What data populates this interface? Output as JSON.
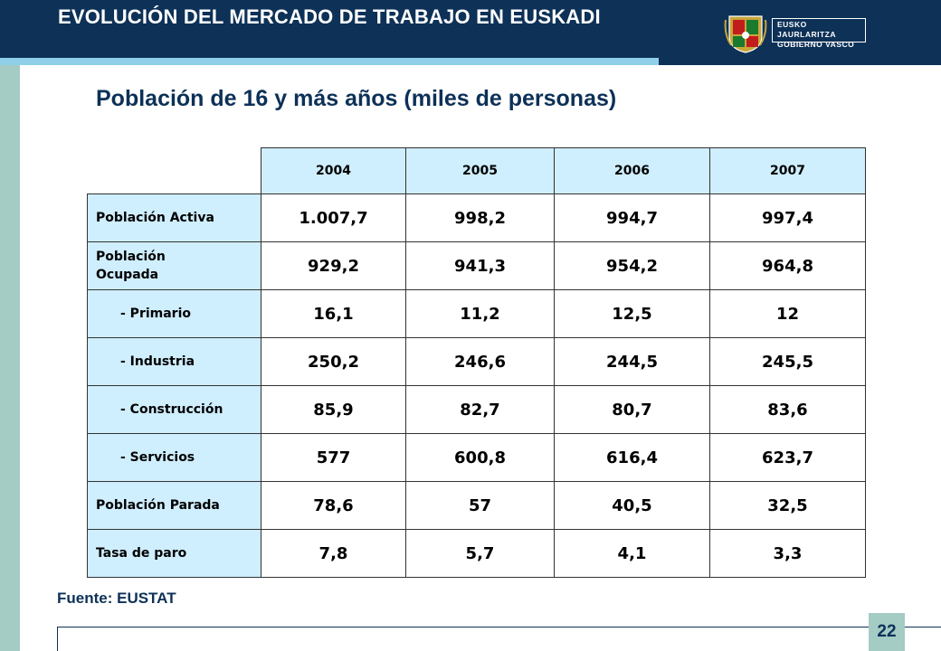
{
  "header": {
    "title": "EVOLUCIÓN DEL MERCADO DE TRABAJO EN EUSKADI",
    "logo_text_line1": "EUSKO JAURLARITZA",
    "logo_text_line2": "GOBIERNO VASCO",
    "bar_color": "#0d3157",
    "accent_color": "#8fd0e8"
  },
  "page_title": "Población de 16 y más años (miles de personas)",
  "table": {
    "years": [
      "2004",
      "2005",
      "2006",
      "2007"
    ],
    "rows": [
      {
        "label": "Población Activa",
        "values": [
          "1.007,7",
          "998,2",
          "994,7",
          "997,4"
        ]
      },
      {
        "label": "Población Ocupada",
        "values": [
          "929,2",
          "941,3",
          "954,2",
          "964,8"
        ]
      },
      {
        "label": "- Primario",
        "values": [
          "16,1",
          "11,2",
          "12,5",
          "12"
        ]
      },
      {
        "label": "- Industria",
        "values": [
          "250,2",
          "246,6",
          "244,5",
          "245,5"
        ]
      },
      {
        "label": "- Construcción",
        "values": [
          "85,9",
          "82,7",
          "80,7",
          "83,6"
        ]
      },
      {
        "label": "- Servicios",
        "values": [
          "577",
          "600,8",
          "616,4",
          "623,7"
        ]
      },
      {
        "label": "Población Parada",
        "values": [
          "78,6",
          "57",
          "40,5",
          "32,5"
        ]
      },
      {
        "label": "Tasa de paro",
        "values": [
          "7,8",
          "5,7",
          "4,1",
          "3,3"
        ]
      }
    ],
    "header_fill": "#cfeefe"
  },
  "source": "Fuente: EUSTAT",
  "page_number": "22"
}
